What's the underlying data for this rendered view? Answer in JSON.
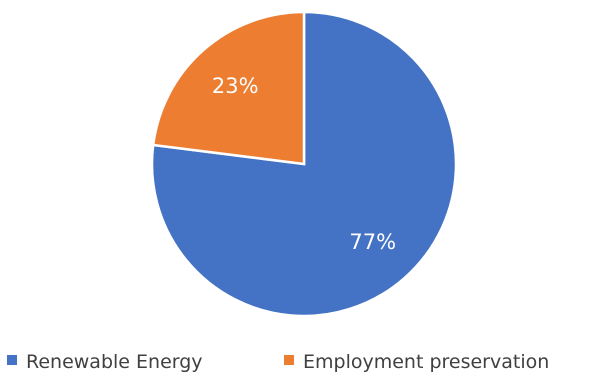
{
  "chart_data": {
    "type": "pie",
    "title": "",
    "slices": [
      {
        "label": "Renewable Energy",
        "value": 77,
        "display": "77%",
        "color": "#4472C4"
      },
      {
        "label": "Employment preservation",
        "value": 23,
        "display": "23%",
        "color": "#ED7D31"
      }
    ],
    "start": "12 o'clock",
    "direction": "clockwise",
    "legend": {
      "position": "bottom",
      "items": [
        {
          "label": "Renewable Energy",
          "color": "#4472C4"
        },
        {
          "label": "Employment preservation",
          "color": "#ED7D31"
        }
      ]
    }
  }
}
